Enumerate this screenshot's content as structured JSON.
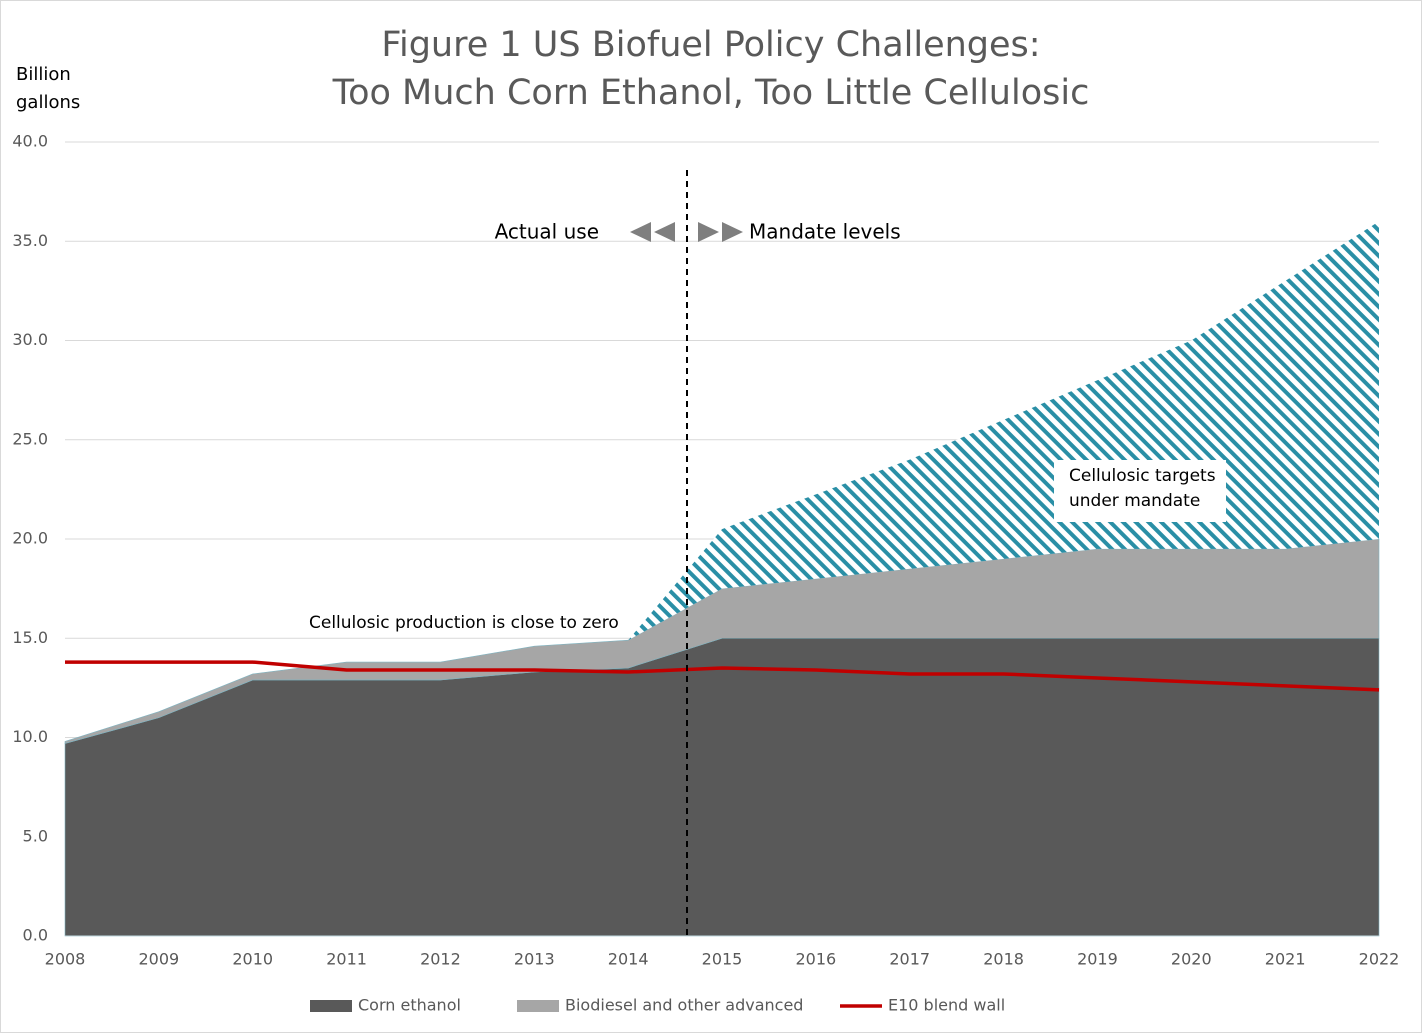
{
  "chart_data": {
    "type": "area",
    "title": [
      "Figure 1 US Biofuel Policy Challenges:",
      "Too Much Corn Ethanol, Too Little Cellulosic"
    ],
    "ylabel": [
      "Billion",
      "gallons"
    ],
    "categories": [
      "2008",
      "2009",
      "2010",
      "2011",
      "2012",
      "2013",
      "2014",
      "2015",
      "2016",
      "2017",
      "2018",
      "2019",
      "2020",
      "2021",
      "2022"
    ],
    "series": [
      {
        "name": "Corn ethanol",
        "type": "area",
        "color": "#595959",
        "values": [
          9.7,
          11.0,
          12.9,
          12.9,
          12.9,
          13.3,
          13.5,
          15.0,
          15.0,
          15.0,
          15.0,
          15.0,
          15.0,
          15.0,
          15.0
        ]
      },
      {
        "name": "Biodiesel and other advanced",
        "type": "area",
        "color": "#a6a6a6",
        "values": [
          0.1,
          0.3,
          0.3,
          0.9,
          0.9,
          1.3,
          1.4,
          2.5,
          3.0,
          3.5,
          4.0,
          4.5,
          4.5,
          4.5,
          5.0
        ]
      },
      {
        "type": "area",
        "color": "#2a8fa6",
        "pattern": "hatch",
        "values": [
          0,
          0,
          0,
          0,
          0,
          0,
          0,
          3.0,
          4.25,
          5.5,
          7.0,
          8.5,
          10.5,
          13.5,
          16.0
        ]
      },
      {
        "name": "E10 blend wall",
        "type": "line",
        "color": "#c00000",
        "values": [
          13.8,
          13.8,
          13.8,
          13.4,
          13.4,
          13.4,
          13.3,
          13.5,
          13.4,
          13.2,
          13.2,
          13.0,
          12.8,
          12.6,
          12.4
        ]
      }
    ],
    "ylim": [
      0,
      40
    ],
    "yticks": [
      {
        "value": 0,
        "label": "0.0"
      },
      {
        "value": 5,
        "label": "5.0"
      },
      {
        "value": 10,
        "label": "10.0"
      },
      {
        "value": 15,
        "label": "15.0"
      },
      {
        "value": 20,
        "label": "20.0"
      },
      {
        "value": 25,
        "label": "25.0"
      },
      {
        "value": 30,
        "label": "30.0"
      },
      {
        "value": 35,
        "label": "35.0"
      },
      {
        "value": 40,
        "label": "40.0"
      }
    ],
    "grid": true,
    "legend": "bottom",
    "annotations": [
      "Actual use",
      "Mandate levels",
      "Cellulosic production is close to zero",
      [
        "Cellulosic targets",
        "under mandate"
      ]
    ]
  }
}
